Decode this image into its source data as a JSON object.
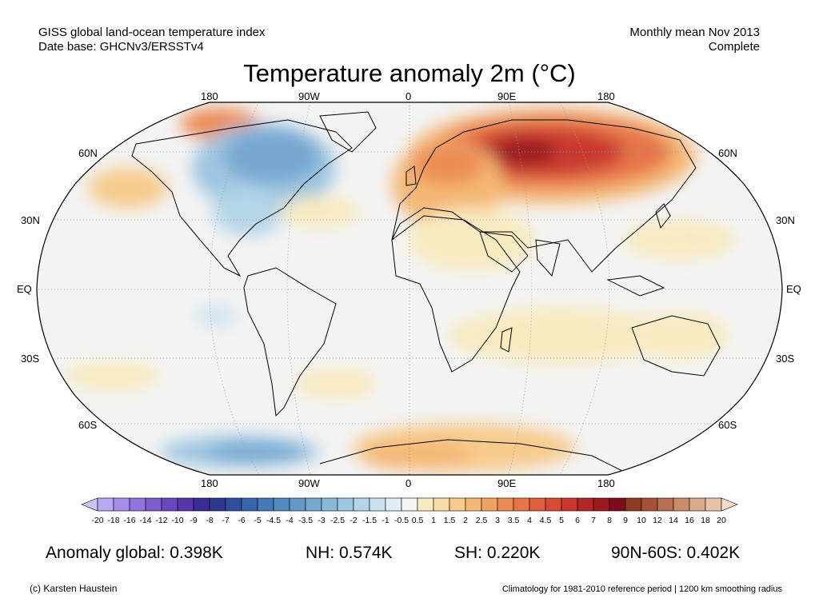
{
  "header": {
    "left_line1": "GISS global land-ocean temperature index",
    "left_line2": "Date base: GHCNv3/ERSSTv4",
    "right_line1": "Monthly mean Nov 2013",
    "right_line2": "Complete"
  },
  "title": "Temperature anomaly 2m (°C)",
  "lon_labels": [
    "180",
    "90W",
    "0",
    "90E",
    "180"
  ],
  "lat_labels": [
    "60N",
    "30N",
    "EQ",
    "30S",
    "60S"
  ],
  "colorbar": {
    "labels": [
      "-20",
      "-18",
      "-16",
      "-14",
      "-12",
      "-10",
      "-9",
      "-8",
      "-7",
      "-6",
      "-5",
      "-4.5",
      "-4",
      "-3.5",
      "-3",
      "-2.5",
      "-2",
      "-1.5",
      "-1",
      "-0.5",
      "0.5",
      "1",
      "1.5",
      "2",
      "2.5",
      "3",
      "3.5",
      "4",
      "4.5",
      "5",
      "6",
      "7",
      "8",
      "9",
      "10",
      "12",
      "14",
      "16",
      "18",
      "20"
    ],
    "colors": [
      "#ccc3f5",
      "#b8a8f0",
      "#a58de8",
      "#9173dc",
      "#7c5ccd",
      "#6a47bd",
      "#5735ab",
      "#3a2c93",
      "#2b3a8f",
      "#2f4f9e",
      "#3865ac",
      "#4579b8",
      "#528bc2",
      "#6399c9",
      "#76a8d1",
      "#8bb7d9",
      "#9ec6e1",
      "#b4d5e8",
      "#c9e2ef",
      "#dfeef5",
      "#f4f4f4",
      "#f8ebc0",
      "#f7dca5",
      "#f6cb8c",
      "#f4b775",
      "#f0a263",
      "#ec8c54",
      "#e67548",
      "#df5f3e",
      "#d64a36",
      "#c9372f",
      "#b32627",
      "#9b1b21",
      "#7e0d19",
      "#8f3923",
      "#a55238",
      "#b8704f",
      "#c98d6a",
      "#d9aa8a",
      "#e8c3a8",
      "#f5dcc8"
    ]
  },
  "stats": {
    "global": "Anomaly global: 0.398K",
    "nh": "NH: 0.574K",
    "sh": "SH: 0.220K",
    "polar": "90N-60S: 0.402K"
  },
  "footer": {
    "left": "(c) Karsten Haustein",
    "right": "Climatology for 1981-2010 reference period | 1200 km smoothing radius"
  },
  "map_data": {
    "projection": "Robinson",
    "variable": "Temperature anomaly 2m",
    "unit": "°C",
    "features": [
      {
        "region": "Siberia / northern Eurasia",
        "anomaly": "strong warm (+5 to +7)"
      },
      {
        "region": "Europe / Middle East",
        "anomaly": "warm (+1 to +3)"
      },
      {
        "region": "Canada / eastern USA",
        "anomaly": "cold (-1 to -3)"
      },
      {
        "region": "Alaska / Bering Sea",
        "anomaly": "warm (+2 to +4)"
      },
      {
        "region": "North Pacific",
        "anomaly": "warm (+1 to +2)"
      },
      {
        "region": "Southern Indian Ocean",
        "anomaly": "mild warm (+0.5 to +1.5)"
      },
      {
        "region": "Antarctica (east)",
        "anomaly": "warm (+1 to +3)"
      },
      {
        "region": "Southern Ocean (Pacific sector)",
        "anomaly": "cold (-1 to -3)"
      }
    ]
  }
}
